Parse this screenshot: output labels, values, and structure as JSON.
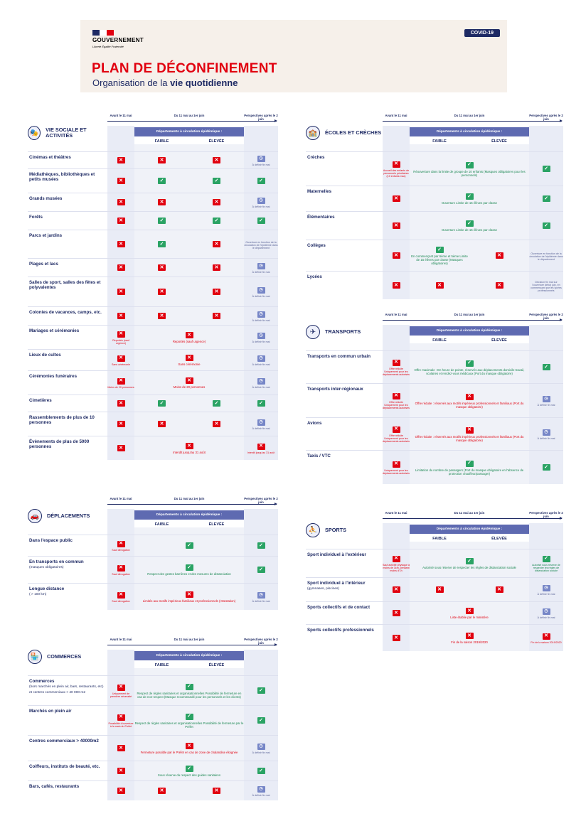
{
  "header": {
    "gov": "GOUVERNEMENT",
    "motto": "Liberté Égalité Fraternité",
    "badge": "COVID-19",
    "title": "PLAN DE DÉCONFINEMENT",
    "subtitle_a": "Organisation de la ",
    "subtitle_b": "vie quotidienne"
  },
  "colors": {
    "blue": "#1e2a64",
    "red": "#e1000f",
    "green": "#2aa364",
    "band": "#5e6ab1"
  },
  "cols": {
    "avant": "Avant le 11 mai",
    "period": "Du 11 mai au 1er juin",
    "persp": "Perspectives après le 2 juin",
    "dept": "Départements à circulation épidémique :",
    "faible": "FAIBLE",
    "elevee": "ÉLEVÉE"
  },
  "panels": [
    {
      "id": "vie",
      "title": "VIE SOCIALE ET ACTIVITÉS",
      "icon": "theater-icon",
      "rows": [
        {
          "label": "Cinémas et théâtres",
          "avant": {
            "i": "x"
          },
          "f": {
            "i": "x"
          },
          "e": {
            "i": "x"
          },
          "p": {
            "i": "k",
            "t": "À définir fin mai"
          }
        },
        {
          "label": "Médiathèques, bibliothèques et petits musées",
          "avant": {
            "i": "x"
          },
          "f": {
            "i": "c"
          },
          "e": {
            "i": "c"
          },
          "p": {
            "i": "c"
          }
        },
        {
          "label": "Grands musées",
          "avant": {
            "i": "x"
          },
          "f": {
            "i": "x"
          },
          "e": {
            "i": "x"
          },
          "p": {
            "i": "k",
            "t": "À définir fin mai"
          }
        },
        {
          "label": "Forêts",
          "avant": {
            "i": "x"
          },
          "f": {
            "i": "c"
          },
          "e": {
            "i": "c"
          },
          "p": {
            "i": "c"
          }
        },
        {
          "label": "Parcs et jardins",
          "avant": {
            "i": "x"
          },
          "f": {
            "i": "c"
          },
          "e": {
            "i": "x"
          },
          "p": {
            "t": "Ouverture en fonction de la circulation de l'épidémie dans le département"
          }
        },
        {
          "label": "Plages et lacs",
          "avant": {
            "i": "x"
          },
          "f": {
            "i": "x"
          },
          "e": {
            "i": "x"
          },
          "p": {
            "i": "k",
            "t": "À définir fin mai"
          }
        },
        {
          "label": "Salles de sport, salles des fêtes et polyvalentes",
          "avant": {
            "i": "x"
          },
          "f": {
            "i": "x"
          },
          "e": {
            "i": "x"
          },
          "p": {
            "i": "k",
            "t": "À définir fin mai"
          }
        },
        {
          "label": "Colonies de vacances, camps, etc.",
          "avant": {
            "i": "x"
          },
          "f": {
            "i": "x"
          },
          "e": {
            "i": "x"
          },
          "p": {
            "i": "k",
            "t": "À définir fin mai"
          }
        },
        {
          "label": "Mariages et cérémonies",
          "avant": {
            "i": "x",
            "t": "Reportés (sauf urgence)",
            "c": "red"
          },
          "span": {
            "i": "x",
            "t": "Reportés (sauf urgence)",
            "c": "red"
          },
          "p": {
            "i": "k",
            "t": "À définir fin mai"
          }
        },
        {
          "label": "Lieux de cultes",
          "avant": {
            "i": "x",
            "t": "Sans cérémonie",
            "c": "red"
          },
          "span": {
            "i": "x",
            "t": "Sans cérémonie",
            "c": "red"
          },
          "p": {
            "i": "k",
            "t": "À définir fin mai"
          }
        },
        {
          "label": "Cérémonies funéraires",
          "avant": {
            "i": "x",
            "t": "Moins de 20 personnes",
            "c": "red"
          },
          "span": {
            "i": "x",
            "t": "Moins de 20 personnes",
            "c": "red"
          },
          "p": {
            "i": "k",
            "t": "À définir fin mai"
          }
        },
        {
          "label": "Cimetières",
          "avant": {
            "i": "x"
          },
          "f": {
            "i": "c"
          },
          "e": {
            "i": "c"
          },
          "p": {
            "i": "c"
          }
        },
        {
          "label": "Rassemblements de plus de 10 personnes",
          "avant": {
            "i": "x"
          },
          "f": {
            "i": "x"
          },
          "e": {
            "i": "x"
          },
          "p": {
            "i": "k",
            "t": "À définir fin mai"
          }
        },
        {
          "label": "Évènements de plus de 5000 personnes",
          "avant": {
            "i": "x"
          },
          "span": {
            "i": "x",
            "t": "Interdit jusqu'au 31 août",
            "c": "red"
          },
          "p": {
            "i": "x",
            "t": "Interdit jusqu'au 31 août",
            "c": "red"
          }
        }
      ]
    },
    {
      "id": "deplacements",
      "title": "DÉPLACEMENTS",
      "icon": "car-icon",
      "rows": [
        {
          "label": "Dans l'espace public",
          "avant": {
            "i": "x",
            "t": "Sauf dérogation",
            "c": "red"
          },
          "span": {
            "i": "c"
          },
          "p": {
            "i": "c"
          }
        },
        {
          "label": "En transports en commun",
          "sub": "(masques obligatoires)",
          "avant": {
            "i": "x",
            "t": "Sauf dérogation",
            "c": "red"
          },
          "span": {
            "i": "c",
            "t": "Respect des gestes barrières et des mesures de distanciation",
            "c": "green"
          },
          "p": {
            "i": "c"
          }
        },
        {
          "label": "Longue distance",
          "sub": "( > 100 km)",
          "avant": {
            "i": "x",
            "t": "Sauf dérogation",
            "c": "red"
          },
          "span": {
            "i": "x",
            "t": "Limités aux motifs impérieux familiaux et professionnels (Attestation)",
            "c": "red"
          },
          "p": {
            "i": "k",
            "t": "À définir fin mai"
          }
        }
      ]
    },
    {
      "id": "commerces",
      "title": "COMMERCES",
      "icon": "shop-icon",
      "rows": [
        {
          "label": "Commerces",
          "sub": "(hors marchés en plein air, bars, restaurants, etc) et centres commerciaux < 40 000 m2",
          "avant": {
            "i": "x",
            "t": "Uniquement de première nécessité",
            "c": "red"
          },
          "span": {
            "i": "c",
            "t": "Respect de règles sanitaires et organisationnelles Possibilité de fermeture en cas de non-respect (Masque recommandé pour les personnels et les clients)",
            "c": "green"
          },
          "p": {
            "i": "c"
          }
        },
        {
          "label": "Marchés en plein air",
          "avant": {
            "i": "x",
            "t": "Possibilité d'ouverture à la main du Préfet",
            "c": "red"
          },
          "span": {
            "i": "c",
            "t": "Respect de règles sanitaires et organisationnelles Possibilité de fermeture par le Préfet",
            "c": "green"
          },
          "p": {
            "i": "c"
          }
        },
        {
          "label": "Centres commerciaux > 40000m2",
          "avant": {
            "i": "x"
          },
          "span": {
            "i": "x",
            "t": "Fermeture possible par le Préfet en cas de zone de chalandise éloignée",
            "c": "red"
          },
          "p": {
            "i": "k",
            "t": "À définir fin mai"
          }
        },
        {
          "label": "Coiffeurs, instituts de beauté, etc.",
          "avant": {
            "i": "x"
          },
          "span": {
            "i": "c",
            "t": "Sous réserve du respect des guides sanitaires",
            "c": "green"
          },
          "p": {
            "i": "c"
          }
        },
        {
          "label": "Bars, cafés, restaurants",
          "avant": {
            "i": "x"
          },
          "f": {
            "i": "x"
          },
          "e": {
            "i": "x"
          },
          "p": {
            "i": "k",
            "t": "À définir fin mai"
          }
        }
      ]
    },
    {
      "id": "ecoles",
      "title": "ÉCOLES ET CRÈCHES",
      "icon": "school-icon",
      "rows": [
        {
          "label": "Crèches",
          "avant": {
            "i": "x",
            "t": "Accueil des enfants de personnels prioritaires (10 enfants max)",
            "c": "red"
          },
          "span": {
            "i": "c",
            "t": "Réouverture dans la limite de groupe de 10 enfants (Masques obligatoires pour les personnels)",
            "c": "green"
          },
          "p": {
            "i": "c"
          }
        },
        {
          "label": "Maternelles",
          "avant": {
            "i": "x"
          },
          "span": {
            "i": "c",
            "t": "Ouverture Limite de 15 élèves par classe",
            "c": "green"
          },
          "p": {
            "i": "c"
          }
        },
        {
          "label": "Élémentaires",
          "avant": {
            "i": "x"
          },
          "span": {
            "i": "c",
            "t": "Ouverture Limite de 15 élèves par classe",
            "c": "green"
          },
          "p": {
            "i": "c"
          }
        },
        {
          "label": "Collèges",
          "avant": {
            "i": "x"
          },
          "f": {
            "i": "c",
            "t": "En commençant par 6ème et 5ème Limite de 15 élèves par classe (Masques obligatoires)",
            "c": "green"
          },
          "e": {
            "i": "x"
          },
          "p": {
            "t": "Ouverture en fonction de la circulation de l'épidémie dans le département"
          }
        },
        {
          "label": "Lycées",
          "avant": {
            "i": "x"
          },
          "f": {
            "i": "x"
          },
          "e": {
            "i": "x"
          },
          "p": {
            "t": "Décision fin mai sur l'ouverture début juin, en commençant par les lycées professionnels"
          }
        }
      ]
    },
    {
      "id": "transports",
      "title": "TRANSPORTS",
      "icon": "plane-icon",
      "rows": [
        {
          "label": "Transports en commun urbain",
          "avant": {
            "i": "x",
            "t": "Offre réduite Uniquement pour les déplacements autorisés",
            "c": "red"
          },
          "span": {
            "i": "c",
            "t": "Offre maximale : En heure de pointe, réservés aux déplacements domicile-travail, scolaires et rendez-vous médicaux (Port du masque obligatoire)",
            "c": "green"
          },
          "p": {
            "i": "c"
          }
        },
        {
          "label": "Transports inter-régionaux",
          "avant": {
            "i": "x",
            "t": "Offre réduite Uniquement pour les déplacements autorisés",
            "c": "red"
          },
          "span": {
            "i": "x",
            "t": "Offre réduite : réservés aux motifs impérieux professionnels et familiaux (Port du masque obligatoire)",
            "c": "red"
          },
          "p": {
            "i": "k",
            "t": "À définir fin mai"
          }
        },
        {
          "label": "Avions",
          "avant": {
            "i": "x",
            "t": "Offre réduite Uniquement pour les déplacements autorisés",
            "c": "red"
          },
          "span": {
            "i": "x",
            "t": "Offre réduite : réservés aux motifs impérieux professionnels et familiaux (Port du masque obligatoire)",
            "c": "red"
          },
          "p": {
            "i": "k",
            "t": "À définir fin mai"
          }
        },
        {
          "label": "Taxis / VTC",
          "avant": {
            "i": "x",
            "t": "Uniquement pour les déplacements autorisés",
            "c": "red"
          },
          "span": {
            "i": "c",
            "t": "Limitation du nombre de passagers (Port du masque obligatoire en l'absence de protection chauffeur/passager)",
            "c": "green"
          },
          "p": {
            "i": "c"
          }
        }
      ]
    },
    {
      "id": "sports",
      "title": "SPORTS",
      "icon": "sport-icon",
      "rows": [
        {
          "label": "Sport individuel à l'extérieur",
          "avant": {
            "i": "x",
            "t": "Sauf activité physique à moins de 1km, pendant moins d'1h",
            "c": "red"
          },
          "span": {
            "i": "c",
            "t": "Autorisé sous réserve de respecter les règles de distanciation sociale",
            "c": "green"
          },
          "p": {
            "i": "c",
            "t": "Autorisé sous réserve de respecter les règles de distanciation sociale",
            "c": "green"
          }
        },
        {
          "label": "Sport individuel à l'intérieur",
          "sub": "(gymnases, piscines)",
          "avant": {
            "i": "x"
          },
          "f": {
            "i": "x"
          },
          "e": {
            "i": "x"
          },
          "p": {
            "i": "k",
            "t": "À définir fin mai"
          }
        },
        {
          "label": "Sports collectifs et de contact",
          "avant": {
            "i": "x"
          },
          "span": {
            "i": "x",
            "t": "Liste établie par le ministère",
            "c": "red"
          },
          "p": {
            "i": "k",
            "t": "À définir fin mai"
          }
        },
        {
          "label": "Sports collectifs professionnels",
          "avant": {
            "i": "x"
          },
          "span": {
            "i": "x",
            "t": "Fin de la saison 2019/2020",
            "c": "red"
          },
          "p": {
            "i": "x",
            "t": "Fin de la saison 2019/2020",
            "c": "red"
          }
        }
      ]
    }
  ]
}
